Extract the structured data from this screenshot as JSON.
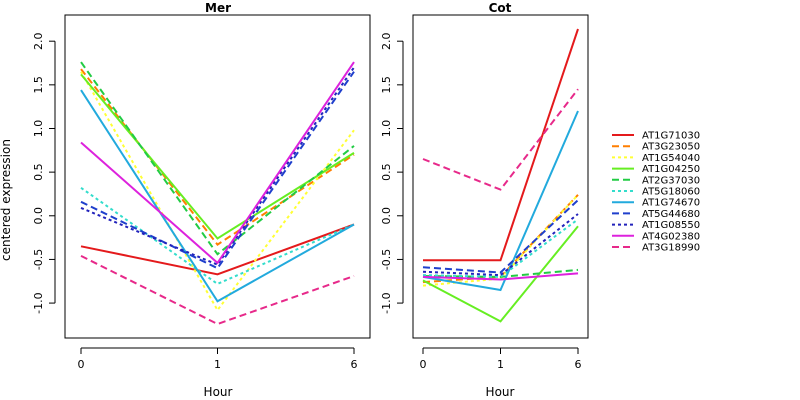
{
  "chart_data": {
    "type": "line",
    "ylabel": "centered expression",
    "xlabel": "Hour",
    "x": [
      "0",
      "1",
      "6"
    ],
    "ylim": [
      -1.4,
      2.3
    ],
    "yticks": [
      "-1.0",
      "-0.5",
      "0.0",
      "0.5",
      "1.0",
      "1.5",
      "2.0"
    ],
    "ytick_values": [
      -1.0,
      -0.5,
      0.0,
      0.5,
      1.0,
      1.5,
      2.0
    ],
    "legend_position": "right",
    "panels": [
      {
        "title": "Mer",
        "series": [
          {
            "name": "AT1G71030",
            "values": [
              -0.35,
              -0.67,
              -0.1
            ]
          },
          {
            "name": "AT3G23050",
            "values": [
              1.68,
              -0.33,
              0.7
            ]
          },
          {
            "name": "AT1G54040",
            "values": [
              1.65,
              -1.08,
              0.98
            ]
          },
          {
            "name": "AT1G04250",
            "values": [
              1.62,
              -0.26,
              0.72
            ]
          },
          {
            "name": "AT2G37030",
            "values": [
              1.76,
              -0.44,
              0.8
            ]
          },
          {
            "name": "AT5G18060",
            "values": [
              0.32,
              -0.78,
              -0.1
            ]
          },
          {
            "name": "AT1G74670",
            "values": [
              1.44,
              -0.98,
              -0.1
            ]
          },
          {
            "name": "AT5G44680",
            "values": [
              0.16,
              -0.6,
              1.65
            ]
          },
          {
            "name": "AT1G08550",
            "values": [
              0.09,
              -0.56,
              1.7
            ]
          },
          {
            "name": "AT4G02380",
            "values": [
              0.84,
              -0.54,
              1.76
            ]
          },
          {
            "name": "AT3G18990",
            "values": [
              -0.46,
              -1.24,
              -0.69
            ]
          }
        ]
      },
      {
        "title": "Cot",
        "series": [
          {
            "name": "AT1G71030",
            "values": [
              -0.51,
              -0.51,
              2.14
            ]
          },
          {
            "name": "AT3G23050",
            "values": [
              -0.76,
              -0.7,
              0.24
            ]
          },
          {
            "name": "AT1G54040",
            "values": [
              -0.8,
              -0.72,
              0.24
            ]
          },
          {
            "name": "AT1G04250",
            "values": [
              -0.74,
              -1.21,
              -0.12
            ]
          },
          {
            "name": "AT2G37030",
            "values": [
              -0.69,
              -0.7,
              -0.62
            ]
          },
          {
            "name": "AT5G18060",
            "values": [
              -0.68,
              -0.7,
              -0.04
            ]
          },
          {
            "name": "AT1G74670",
            "values": [
              -0.7,
              -0.85,
              1.2
            ]
          },
          {
            "name": "AT5G44680",
            "values": [
              -0.59,
              -0.65,
              0.18
            ]
          },
          {
            "name": "AT1G08550",
            "values": [
              -0.64,
              -0.68,
              0.02
            ]
          },
          {
            "name": "AT4G02380",
            "values": [
              -0.7,
              -0.73,
              -0.66
            ]
          },
          {
            "name": "AT3G18990",
            "values": [
              0.65,
              0.3,
              1.45
            ]
          }
        ]
      }
    ],
    "styles": [
      {
        "name": "AT1G71030",
        "color": "#e41a1c",
        "dash": "solid"
      },
      {
        "name": "AT3G23050",
        "color": "#ff7f00",
        "dash": "dashed"
      },
      {
        "name": "AT1G54040",
        "color": "#ffff33",
        "dash": "dotted"
      },
      {
        "name": "AT1G04250",
        "color": "#66ee22",
        "dash": "solid"
      },
      {
        "name": "AT2G37030",
        "color": "#22cc44",
        "dash": "dashed"
      },
      {
        "name": "AT5G18060",
        "color": "#33ddcc",
        "dash": "dotted"
      },
      {
        "name": "AT1G74670",
        "color": "#22aadd",
        "dash": "solid"
      },
      {
        "name": "AT5G44680",
        "color": "#1f3fcc",
        "dash": "dashed"
      },
      {
        "name": "AT1G08550",
        "color": "#2222bb",
        "dash": "dotted"
      },
      {
        "name": "AT4G02380",
        "color": "#dd22dd",
        "dash": "solid"
      },
      {
        "name": "AT3G18990",
        "color": "#e7298a",
        "dash": "dashed"
      }
    ]
  }
}
